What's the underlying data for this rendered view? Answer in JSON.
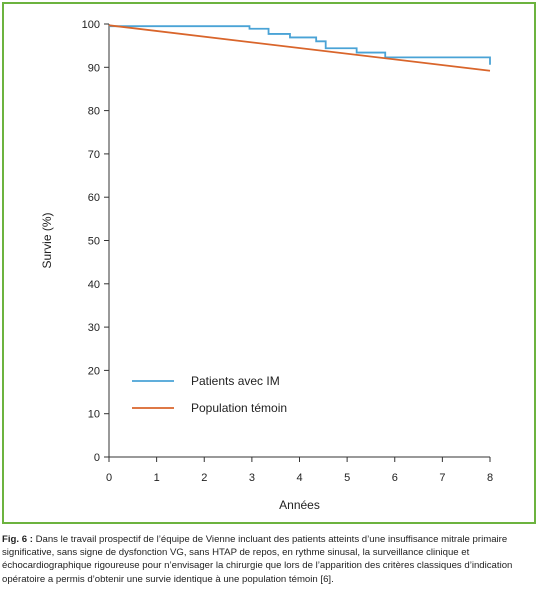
{
  "chart_data": {
    "type": "line",
    "xlabel": "Années",
    "ylabel": "Survie (%)",
    "xlim": [
      0,
      8
    ],
    "ylim": [
      0,
      100
    ],
    "xticks": [
      0,
      1,
      2,
      3,
      4,
      5,
      6,
      7,
      8
    ],
    "yticks": [
      0,
      10,
      20,
      30,
      40,
      50,
      60,
      70,
      80,
      90,
      100
    ],
    "grid": false,
    "legend_position": "bottom-left",
    "series": [
      {
        "name": "Patients avec IM",
        "color": "#4aa3d6",
        "step": true,
        "x": [
          0,
          1.95,
          2.95,
          3.35,
          3.8,
          4.35,
          4.55,
          5.2,
          5.8,
          8.0
        ],
        "y": [
          99.5,
          99.5,
          98.9,
          97.7,
          96.9,
          96.0,
          94.4,
          93.4,
          92.3,
          90.6
        ]
      },
      {
        "name": "Population témoin",
        "color": "#d9652b",
        "step": false,
        "x": [
          0,
          8
        ],
        "y": [
          99.7,
          89.2
        ]
      }
    ]
  },
  "caption": {
    "label": "Fig. 6 :",
    "text": " Dans le travail prospectif de l’équipe de Vienne incluant des patients atteints d’une insuffisance mitrale primaire significative, sans signe de dysfonction VG, sans HTAP de repos, en rythme sinusal, la surveillance clinique et échocardiographique rigoureuse pour n’envisager la chirurgie que lors de l’apparition des critères classiques d’indication opératoire a permis d’obtenir une survie identique à une population témoin [6]."
  }
}
